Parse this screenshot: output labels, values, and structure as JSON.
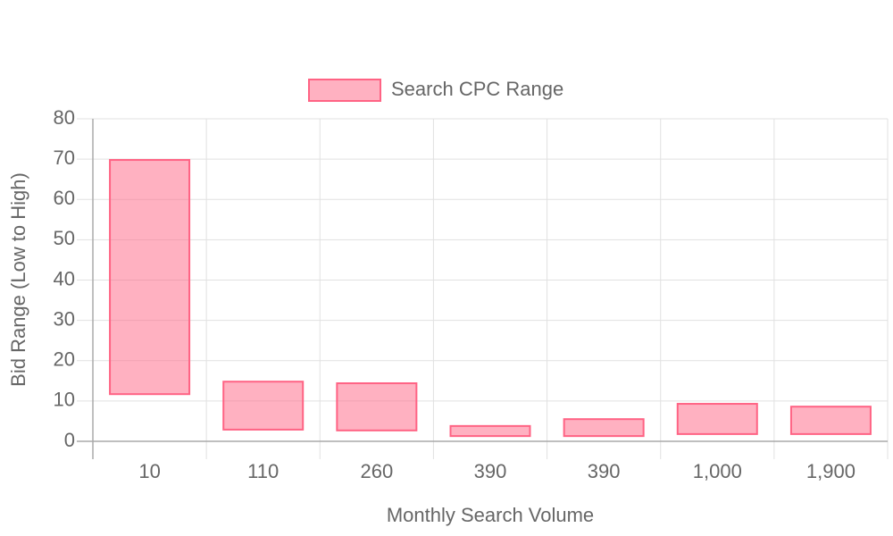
{
  "chart_data": {
    "type": "floating-bar",
    "x_label": "Monthly Search Volume",
    "y_label": "Bid Range (Low to High)",
    "categories": [
      "10",
      "110",
      "260",
      "390",
      "390",
      "1,000",
      "1,900"
    ],
    "series": [
      {
        "name": "Search CPC Range",
        "color": "#ff6384",
        "low": [
          11.7,
          2.9,
          2.7,
          1.3,
          1.3,
          1.8,
          1.8
        ],
        "high": [
          69.8,
          14.8,
          14.4,
          3.8,
          5.5,
          9.3,
          8.6
        ]
      }
    ],
    "ylim": [
      0,
      80
    ],
    "yticks": [
      0,
      10,
      20,
      30,
      40,
      50,
      60,
      70,
      80
    ],
    "grid": true,
    "legend": "top"
  }
}
